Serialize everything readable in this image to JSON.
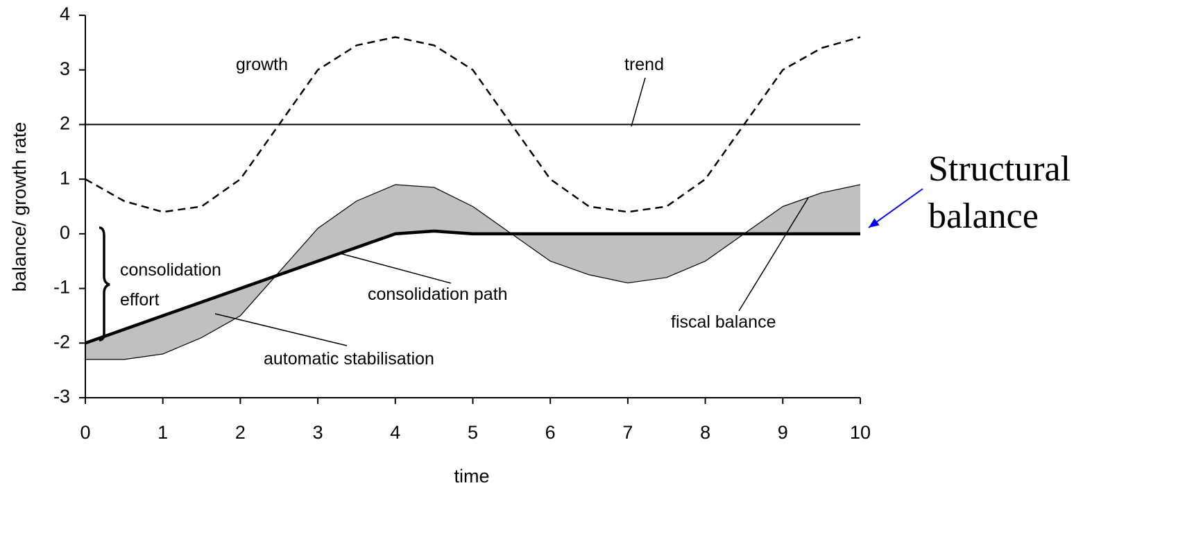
{
  "chart_data": {
    "type": "line",
    "xlabel": "time",
    "ylabel": "balance/ growth rate",
    "x": [
      0,
      0.5,
      1,
      1.5,
      2,
      2.5,
      3,
      3.5,
      4,
      4.5,
      5,
      5.5,
      6,
      6.5,
      7,
      7.5,
      8,
      8.5,
      9,
      9.5,
      10
    ],
    "series": [
      {
        "name": "growth",
        "color": "#000000",
        "dash": true,
        "width": 2.5,
        "values": [
          1.0,
          0.6,
          0.4,
          0.5,
          1.0,
          2.0,
          3.0,
          3.45,
          3.6,
          3.45,
          3.0,
          2.0,
          1.0,
          0.5,
          0.4,
          0.5,
          1.0,
          2.0,
          3.0,
          3.4,
          3.6
        ]
      },
      {
        "name": "trend",
        "color": "#000000",
        "dash": false,
        "width": 2,
        "values": [
          2,
          2,
          2,
          2,
          2,
          2,
          2,
          2,
          2,
          2,
          2,
          2,
          2,
          2,
          2,
          2,
          2,
          2,
          2,
          2,
          2
        ]
      },
      {
        "name": "fiscal balance",
        "color": "#000000",
        "dash": false,
        "width": 1.2,
        "values": [
          -2.3,
          -2.3,
          -2.2,
          -1.9,
          -1.5,
          -0.7,
          0.1,
          0.6,
          0.9,
          0.85,
          0.5,
          0.0,
          -0.5,
          -0.75,
          -0.9,
          -0.8,
          -0.5,
          0.0,
          0.5,
          0.75,
          0.9
        ]
      },
      {
        "name": "consolidation path",
        "color": "#000000",
        "dash": false,
        "width": 4.5,
        "values": [
          -2.0,
          -1.75,
          -1.5,
          -1.25,
          -1.0,
          -0.75,
          -0.5,
          -0.25,
          0.0,
          0.05,
          0,
          0,
          0,
          0,
          0,
          0,
          0,
          0,
          0,
          0,
          0
        ]
      }
    ],
    "fill_between": {
      "series": [
        2,
        3
      ],
      "color": "#c0c0c0"
    },
    "annotations": [
      "growth",
      "trend",
      "consolidation effort",
      "consolidation path",
      "automatic stabilisation",
      "fiscal balance",
      "Structural balance"
    ],
    "annotation_arrow_color": "#0000ff",
    "xlim": [
      0,
      10
    ],
    "xticks": [
      0,
      1,
      2,
      3,
      4,
      5,
      6,
      7,
      8,
      9,
      10
    ],
    "ylim": [
      -3,
      4
    ],
    "yticks": [
      -3,
      -2,
      -1,
      0,
      1,
      2,
      3,
      4
    ],
    "grid": false,
    "legend": false
  }
}
